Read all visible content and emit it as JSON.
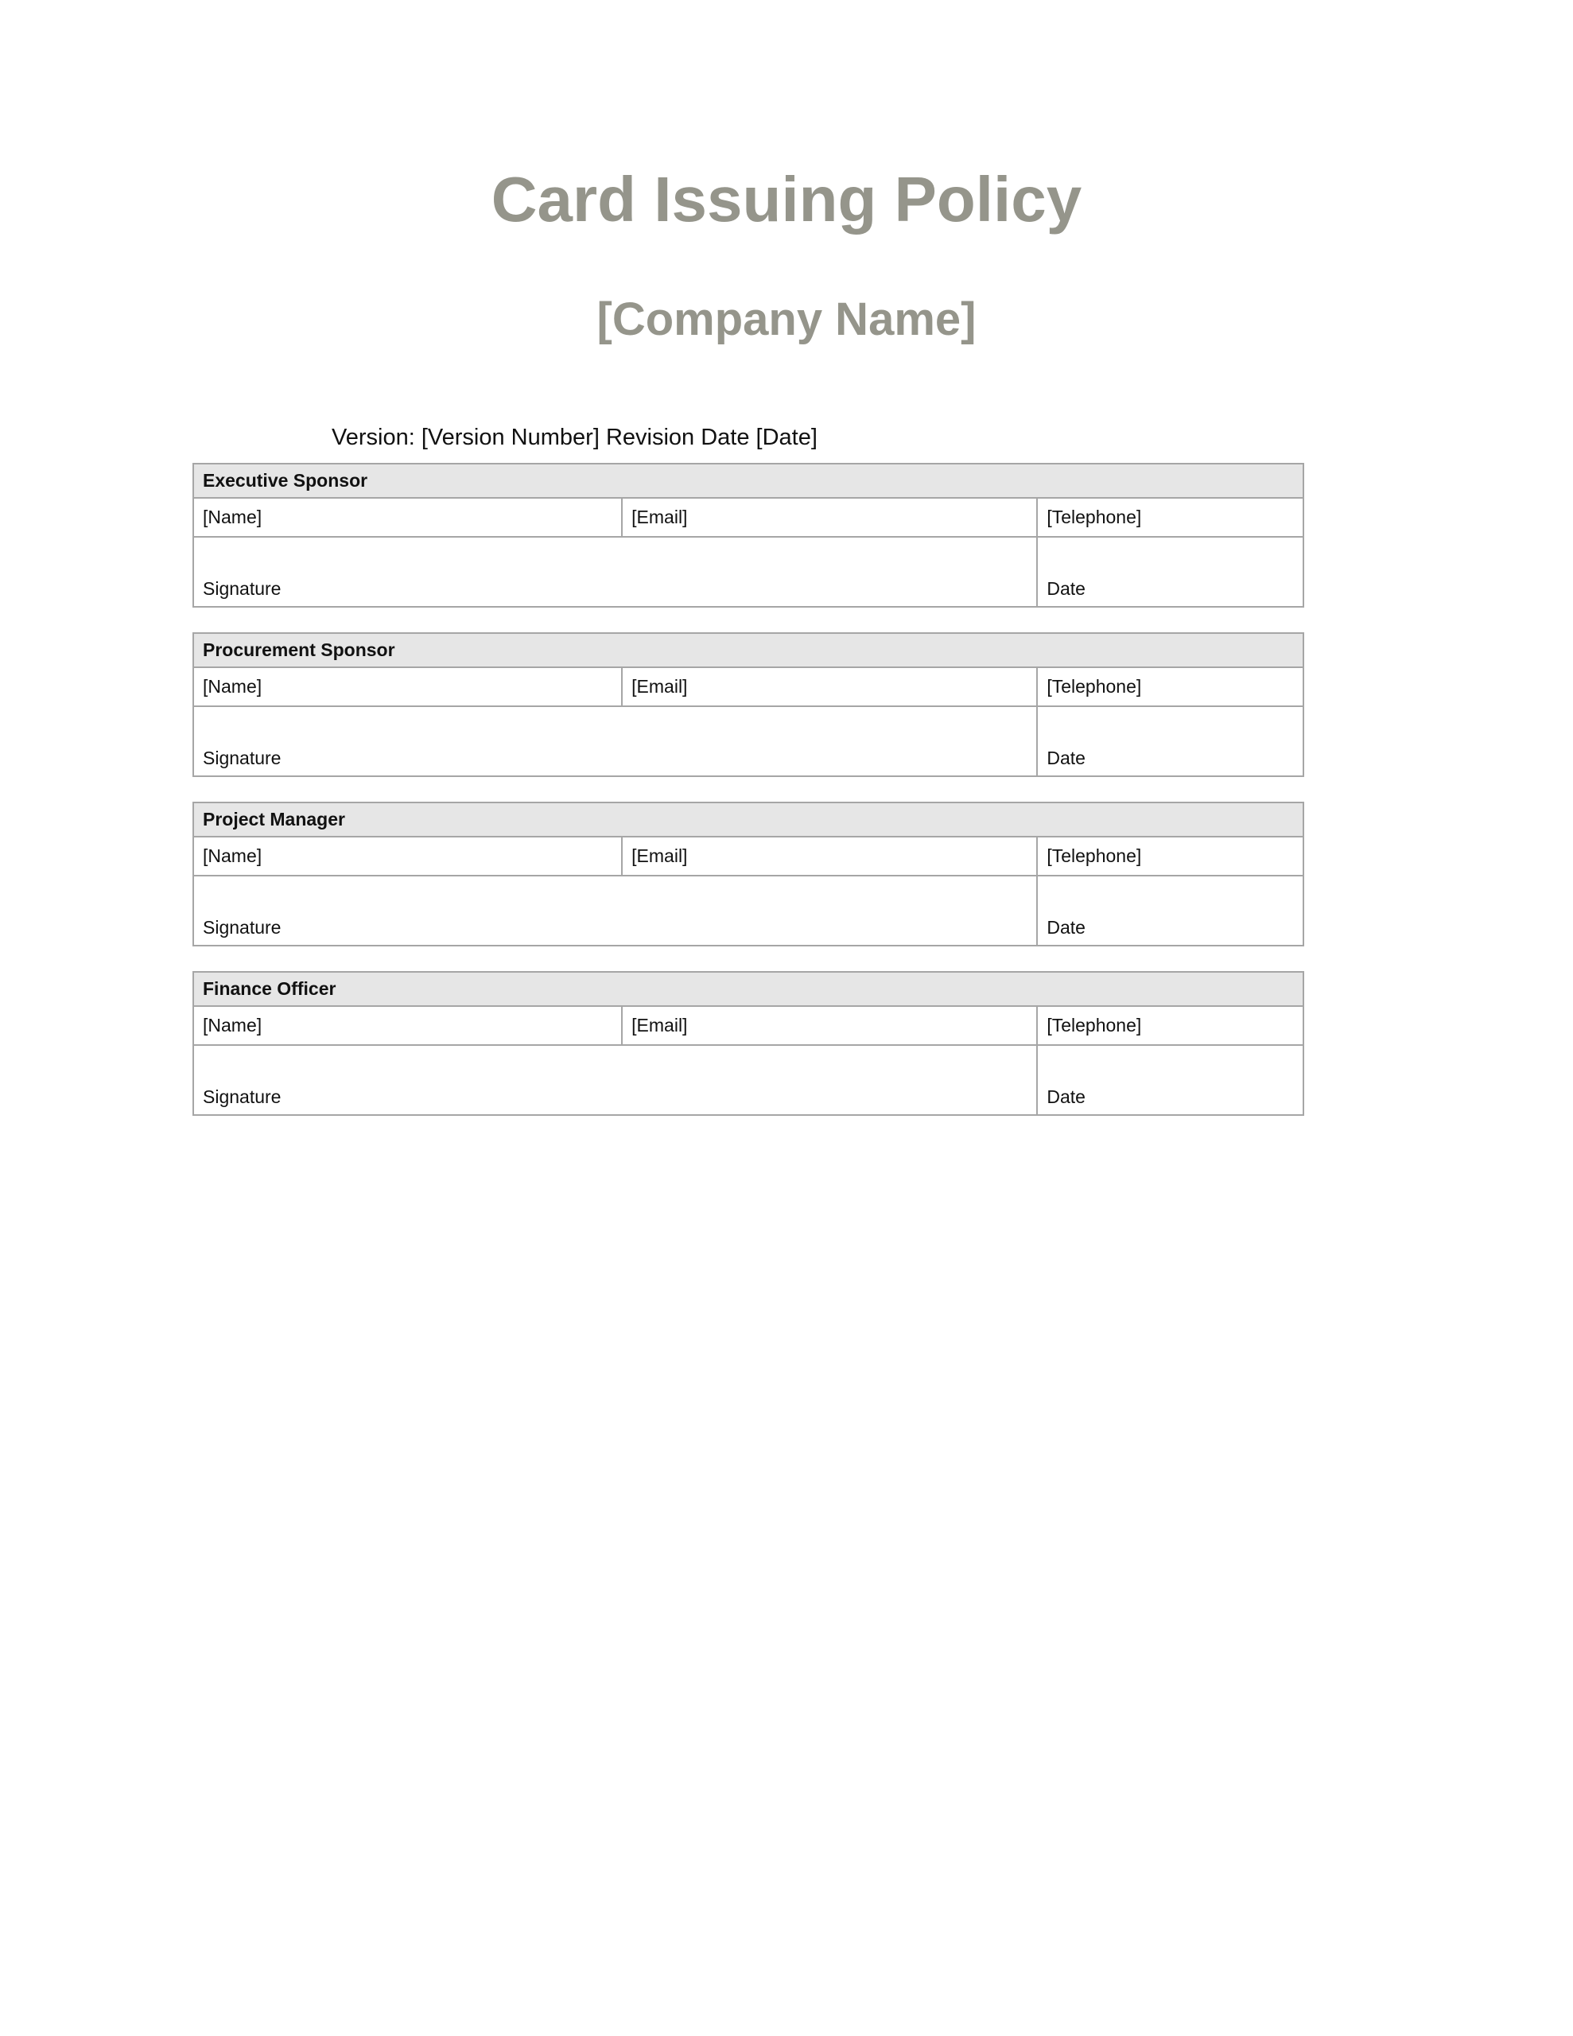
{
  "document": {
    "title": "Card Issuing Policy",
    "company": "[Company Name]",
    "version_line": "Version: [Version Number] Revision Date [Date]"
  },
  "tables": [
    {
      "role": "Executive Sponsor",
      "name": "[Name]",
      "email": "[Email]",
      "telephone": "[Telephone]",
      "signature": "Signature",
      "date": "Date"
    },
    {
      "role": "Procurement Sponsor",
      "name": "[Name]",
      "email": "[Email]",
      "telephone": "[Telephone]",
      "signature": "Signature",
      "date": "Date"
    },
    {
      "role": "Project Manager",
      "name": "[Name]",
      "email": "[Email]",
      "telephone": "[Telephone]",
      "signature": "Signature",
      "date": "Date"
    },
    {
      "role": "Finance Officer",
      "name": "[Name]",
      "email": "[Email]",
      "telephone": "[Telephone]",
      "signature": "Signature",
      "date": "Date"
    }
  ],
  "colors": {
    "title": "#95958b",
    "header_bg": "#e6e6e6",
    "border": "#a6a6a6"
  }
}
